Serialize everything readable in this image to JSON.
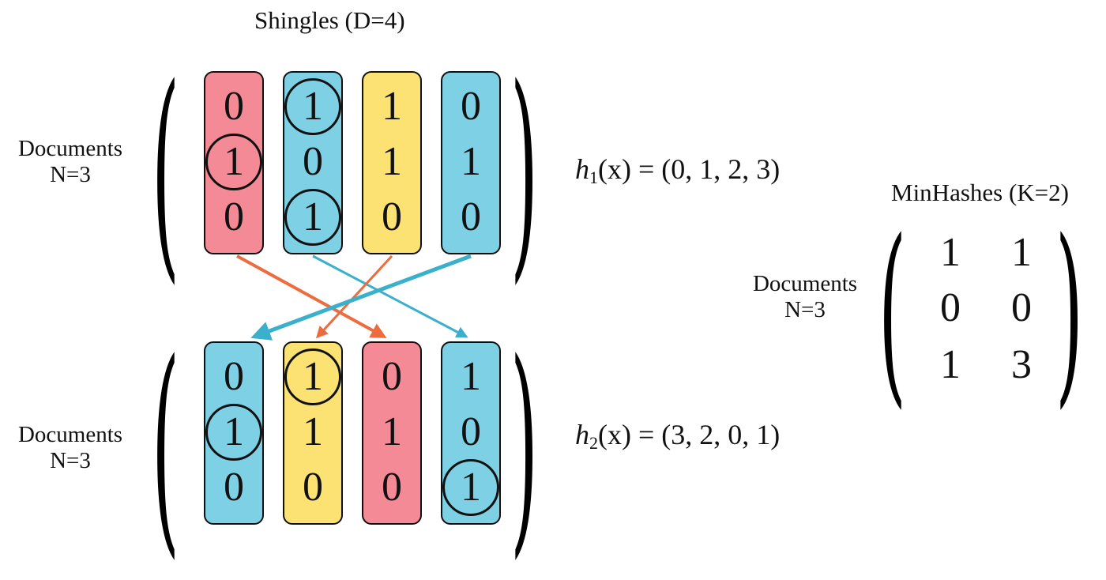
{
  "shingles_title": "Shingles (D=4)",
  "minhash_title": "MinHashes (K=2)",
  "doc_labels": {
    "top": {
      "line1": "Documents",
      "line2": "N=3"
    },
    "bottom": {
      "line1": "Documents",
      "line2": "N=3"
    },
    "minhash": {
      "line1": "Documents",
      "line2": "N=3"
    }
  },
  "h1": {
    "name": "h",
    "sub": "1",
    "arg": "(x)",
    "eq": "=",
    "value": "(0, 1, 2, 3)"
  },
  "h2": {
    "name": "h",
    "sub": "2",
    "arg": "(x)",
    "eq": "=",
    "value": "(3, 2, 0, 1)"
  },
  "colors": {
    "red": "#f48a95",
    "blue": "#7ed0e4",
    "yellow": "#fce273",
    "arrow_orange": "#ec6b3f",
    "arrow_blue": "#3ab0cc"
  },
  "matrix_top": {
    "columns": [
      {
        "color": "red",
        "values": [
          "0",
          "1",
          "0"
        ],
        "circled": [
          1
        ]
      },
      {
        "color": "blue",
        "values": [
          "1",
          "0",
          "1"
        ],
        "circled": [
          0,
          2
        ]
      },
      {
        "color": "yellow",
        "values": [
          "1",
          "1",
          "0"
        ],
        "circled": []
      },
      {
        "color": "blue",
        "values": [
          "0",
          "1",
          "0"
        ],
        "circled": []
      }
    ]
  },
  "matrix_bottom": {
    "columns": [
      {
        "color": "blue",
        "values": [
          "0",
          "1",
          "0"
        ],
        "circled": [
          1
        ]
      },
      {
        "color": "yellow",
        "values": [
          "1",
          "1",
          "0"
        ],
        "circled": [
          0
        ]
      },
      {
        "color": "red",
        "values": [
          "0",
          "1",
          "0"
        ],
        "circled": []
      },
      {
        "color": "blue",
        "values": [
          "1",
          "0",
          "1"
        ],
        "circled": [
          2
        ]
      }
    ]
  },
  "minhash_matrix": [
    [
      "1",
      "1"
    ],
    [
      "0",
      "0"
    ],
    [
      "1",
      "3"
    ]
  ]
}
